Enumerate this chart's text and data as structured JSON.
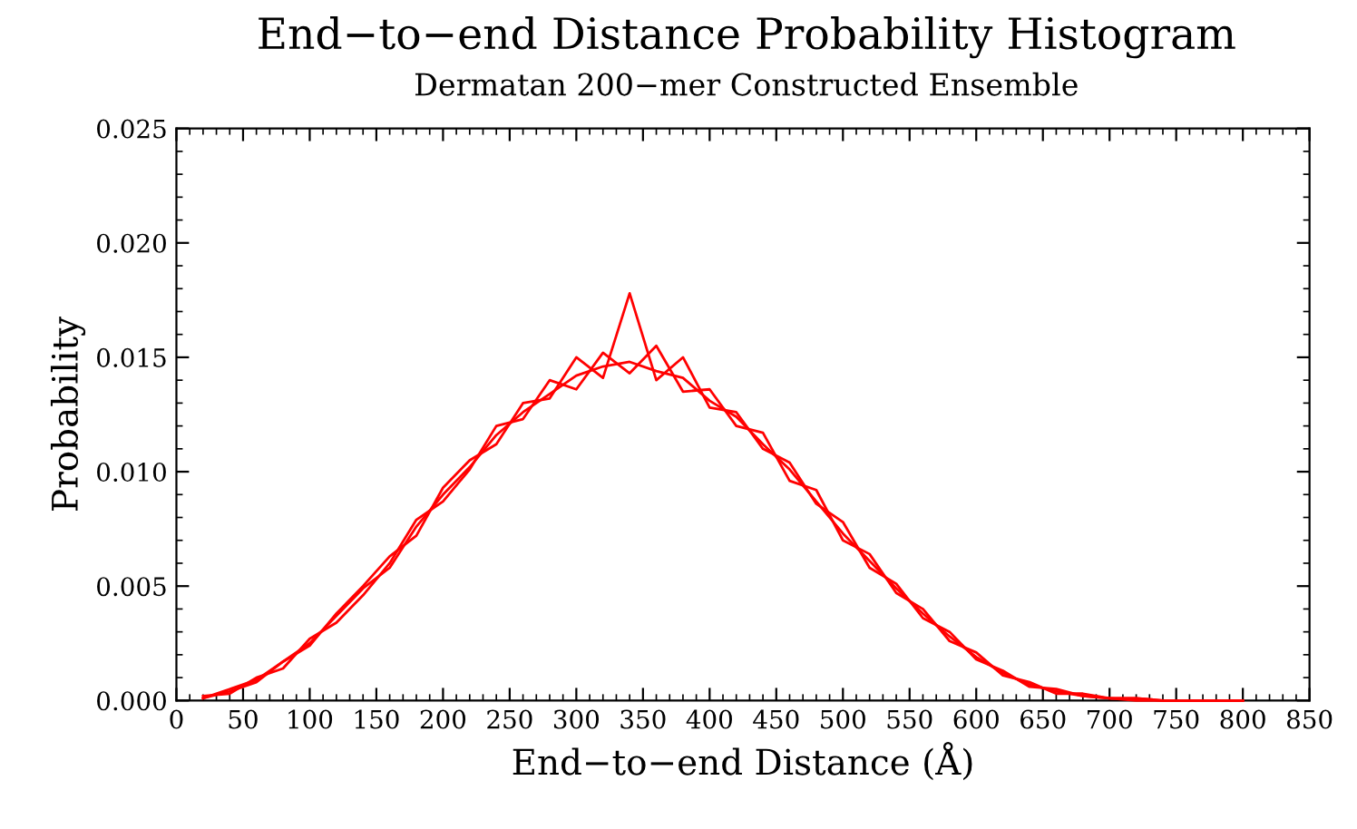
{
  "chart_data": {
    "type": "line",
    "title": "End−to−end Distance Probability Histogram",
    "subtitle": "Dermatan 200−mer Constructed Ensemble",
    "xlabel": "End−to−end Distance (Å)",
    "ylabel": "Probability",
    "x": [
      20,
      40,
      60,
      80,
      100,
      120,
      140,
      160,
      180,
      200,
      220,
      240,
      260,
      280,
      300,
      320,
      340,
      360,
      380,
      400,
      420,
      440,
      460,
      480,
      500,
      520,
      540,
      560,
      580,
      600,
      620,
      640,
      660,
      680,
      700,
      720,
      740,
      760,
      780,
      800
    ],
    "series": [
      {
        "color": "#ff0000",
        "values": [
          0.0001,
          0.0005,
          0.0009,
          0.0017,
          0.0024,
          0.0038,
          0.005,
          0.0063,
          0.0072,
          0.0093,
          0.0105,
          0.0112,
          0.013,
          0.0132,
          0.015,
          0.0141,
          0.0178,
          0.014,
          0.015,
          0.0128,
          0.0126,
          0.011,
          0.0104,
          0.0086,
          0.0078,
          0.0058,
          0.0051,
          0.0036,
          0.003,
          0.0018,
          0.0013,
          0.0006,
          0.0005,
          0.0002,
          0.0001,
          0.0001,
          0.0,
          0.0,
          0.0,
          0.0
        ]
      },
      {
        "color": "#ff0000",
        "values": [
          0.0002,
          0.0003,
          0.001,
          0.0014,
          0.0027,
          0.0034,
          0.0046,
          0.006,
          0.0079,
          0.0087,
          0.0101,
          0.012,
          0.0123,
          0.014,
          0.0136,
          0.0152,
          0.0143,
          0.0155,
          0.0135,
          0.0136,
          0.012,
          0.0117,
          0.0096,
          0.0092,
          0.007,
          0.0064,
          0.0047,
          0.004,
          0.0026,
          0.0021,
          0.0011,
          0.0008,
          0.0003,
          0.0003,
          0.0001,
          0.0,
          0.0,
          0.0,
          0.0,
          0.0
        ]
      },
      {
        "color": "#ff0000",
        "values": [
          0.0001,
          0.0004,
          0.0008,
          0.0017,
          0.0025,
          0.0037,
          0.0049,
          0.0058,
          0.0076,
          0.009,
          0.0102,
          0.0116,
          0.0126,
          0.0134,
          0.0142,
          0.0146,
          0.0148,
          0.0144,
          0.0141,
          0.0131,
          0.0124,
          0.0112,
          0.0101,
          0.0087,
          0.0073,
          0.0061,
          0.0049,
          0.0038,
          0.0028,
          0.0019,
          0.0012,
          0.0007,
          0.0004,
          0.0002,
          0.0001,
          0.0001,
          0.0,
          0.0,
          0.0,
          0.0
        ]
      }
    ],
    "xlim": [
      0,
      850
    ],
    "ylim": [
      0,
      0.025
    ],
    "xticks": [
      0,
      50,
      100,
      150,
      200,
      250,
      300,
      350,
      400,
      450,
      500,
      550,
      600,
      650,
      700,
      750,
      800,
      850
    ],
    "yticks": [
      {
        "value": 0,
        "label": "0.000"
      },
      {
        "value": 0.005,
        "label": "0.005"
      },
      {
        "value": 0.01,
        "label": "0.010"
      },
      {
        "value": 0.015,
        "label": "0.015"
      },
      {
        "value": 0.02,
        "label": "0.020"
      },
      {
        "value": 0.025,
        "label": "0.025"
      }
    ],
    "grid": false,
    "legend": false,
    "marker": "none",
    "line_style": "solid"
  }
}
